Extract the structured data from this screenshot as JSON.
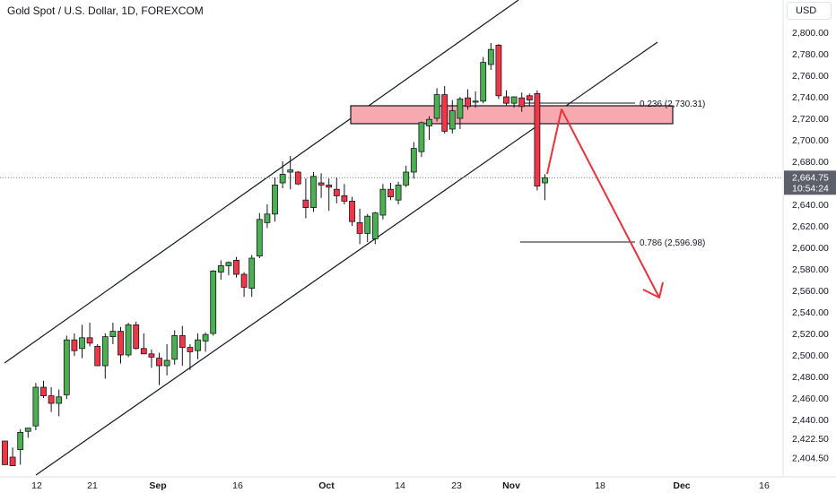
{
  "header": {
    "title": "Gold Spot / U.S. Dollar, 1D, FOREXCOM",
    "currency": "USD"
  },
  "price_label": {
    "price": "2,664.75",
    "countdown": "10:54:24"
  },
  "annotations": {
    "fib_0236": "0.236 (2,730.31)",
    "fib_0786": "0.786 (2,596.98)"
  },
  "colors": {
    "up": "#4caf50",
    "down": "#f23645",
    "arrow": "#e8323c",
    "zone_fill": "#f7a9b0",
    "price_tag": "#5d606b"
  },
  "chart_data": {
    "type": "candlestick",
    "ylim": [
      2394,
      2820
    ],
    "yticks": [
      "2,800.00",
      "2,780.00",
      "2,760.00",
      "2,740.00",
      "2,720.00",
      "2,700.00",
      "2,680.00",
      "2,660.00",
      "2,640.00",
      "2,620.00",
      "2,600.00",
      "2,580.00",
      "2,560.00",
      "2,540.00",
      "2,520.00",
      "2,500.00",
      "2,480.00",
      "2,460.00",
      "2,440.00",
      "2,422.50",
      "2,404.50"
    ],
    "xticks": [
      "12",
      "21",
      "Sep",
      "16",
      "Oct",
      "14",
      "23",
      "Nov",
      "18",
      "Dec",
      "16"
    ],
    "candles": [
      {
        "o": 2420,
        "h": 2420,
        "l": 2398,
        "c": 2398
      },
      {
        "o": 2405,
        "h": 2414,
        "l": 2397,
        "c": 2397
      },
      {
        "o": 2412,
        "h": 2431,
        "l": 2398,
        "c": 2428
      },
      {
        "o": 2429,
        "h": 2432,
        "l": 2423,
        "c": 2432
      },
      {
        "o": 2434,
        "h": 2474,
        "l": 2430,
        "c": 2470
      },
      {
        "o": 2470,
        "h": 2476,
        "l": 2460,
        "c": 2462
      },
      {
        "o": 2462,
        "h": 2470,
        "l": 2447,
        "c": 2455
      },
      {
        "o": 2455,
        "h": 2468,
        "l": 2443,
        "c": 2461
      },
      {
        "o": 2463,
        "h": 2518,
        "l": 2459,
        "c": 2514
      },
      {
        "o": 2514,
        "h": 2520,
        "l": 2499,
        "c": 2504
      },
      {
        "o": 2506,
        "h": 2528,
        "l": 2497,
        "c": 2516
      },
      {
        "o": 2516,
        "h": 2530,
        "l": 2508,
        "c": 2511
      },
      {
        "o": 2508,
        "h": 2510,
        "l": 2490,
        "c": 2490
      },
      {
        "o": 2490,
        "h": 2520,
        "l": 2478,
        "c": 2517
      },
      {
        "o": 2517,
        "h": 2530,
        "l": 2510,
        "c": 2522
      },
      {
        "o": 2522,
        "h": 2526,
        "l": 2492,
        "c": 2500
      },
      {
        "o": 2500,
        "h": 2530,
        "l": 2498,
        "c": 2528
      },
      {
        "o": 2528,
        "h": 2531,
        "l": 2505,
        "c": 2506
      },
      {
        "o": 2506,
        "h": 2520,
        "l": 2501,
        "c": 2501
      },
      {
        "o": 2501,
        "h": 2505,
        "l": 2488,
        "c": 2498
      },
      {
        "o": 2497,
        "h": 2502,
        "l": 2472,
        "c": 2490
      },
      {
        "o": 2490,
        "h": 2510,
        "l": 2481,
        "c": 2495
      },
      {
        "o": 2496,
        "h": 2523,
        "l": 2491,
        "c": 2518
      },
      {
        "o": 2518,
        "h": 2527,
        "l": 2490,
        "c": 2507
      },
      {
        "o": 2507,
        "h": 2510,
        "l": 2486,
        "c": 2503
      },
      {
        "o": 2504,
        "h": 2520,
        "l": 2496,
        "c": 2514
      },
      {
        "o": 2513,
        "h": 2521,
        "l": 2503,
        "c": 2519
      },
      {
        "o": 2520,
        "h": 2579,
        "l": 2518,
        "c": 2578
      },
      {
        "o": 2577,
        "h": 2588,
        "l": 2570,
        "c": 2583
      },
      {
        "o": 2583,
        "h": 2587,
        "l": 2574,
        "c": 2586
      },
      {
        "o": 2588,
        "h": 2591,
        "l": 2572,
        "c": 2575
      },
      {
        "o": 2575,
        "h": 2577,
        "l": 2554,
        "c": 2563
      },
      {
        "o": 2562,
        "h": 2593,
        "l": 2554,
        "c": 2590
      },
      {
        "o": 2592,
        "h": 2632,
        "l": 2590,
        "c": 2626
      },
      {
        "o": 2623,
        "h": 2640,
        "l": 2618,
        "c": 2631
      },
      {
        "o": 2631,
        "h": 2665,
        "l": 2624,
        "c": 2658
      },
      {
        "o": 2660,
        "h": 2680,
        "l": 2655,
        "c": 2668
      },
      {
        "o": 2670,
        "h": 2685,
        "l": 2654,
        "c": 2672
      },
      {
        "o": 2670,
        "h": 2671,
        "l": 2658,
        "c": 2659
      },
      {
        "o": 2644,
        "h": 2664,
        "l": 2627,
        "c": 2637
      },
      {
        "o": 2637,
        "h": 2670,
        "l": 2633,
        "c": 2666
      },
      {
        "o": 2660,
        "h": 2669,
        "l": 2646,
        "c": 2658
      },
      {
        "o": 2658,
        "h": 2664,
        "l": 2634,
        "c": 2656
      },
      {
        "o": 2654,
        "h": 2665,
        "l": 2641,
        "c": 2648
      },
      {
        "o": 2648,
        "h": 2659,
        "l": 2640,
        "c": 2643
      },
      {
        "o": 2643,
        "h": 2647,
        "l": 2620,
        "c": 2624
      },
      {
        "o": 2623,
        "h": 2636,
        "l": 2603,
        "c": 2613
      },
      {
        "o": 2613,
        "h": 2631,
        "l": 2605,
        "c": 2629
      },
      {
        "o": 2608,
        "h": 2633,
        "l": 2603,
        "c": 2632
      },
      {
        "o": 2630,
        "h": 2659,
        "l": 2626,
        "c": 2654
      },
      {
        "o": 2654,
        "h": 2660,
        "l": 2644,
        "c": 2647
      },
      {
        "o": 2644,
        "h": 2661,
        "l": 2640,
        "c": 2658
      },
      {
        "o": 2658,
        "h": 2676,
        "l": 2656,
        "c": 2670
      },
      {
        "o": 2670,
        "h": 2698,
        "l": 2664,
        "c": 2692
      },
      {
        "o": 2689,
        "h": 2717,
        "l": 2684,
        "c": 2716
      },
      {
        "o": 2713,
        "h": 2722,
        "l": 2700,
        "c": 2719
      },
      {
        "o": 2720,
        "h": 2748,
        "l": 2717,
        "c": 2742
      },
      {
        "o": 2742,
        "h": 2750,
        "l": 2706,
        "c": 2708
      },
      {
        "o": 2710,
        "h": 2737,
        "l": 2706,
        "c": 2727
      },
      {
        "o": 2720,
        "h": 2740,
        "l": 2710,
        "c": 2738
      },
      {
        "o": 2739,
        "h": 2747,
        "l": 2728,
        "c": 2731
      },
      {
        "o": 2735,
        "h": 2745,
        "l": 2730,
        "c": 2736
      },
      {
        "o": 2736,
        "h": 2777,
        "l": 2734,
        "c": 2772
      },
      {
        "o": 2770,
        "h": 2790,
        "l": 2765,
        "c": 2784
      },
      {
        "o": 2788,
        "h": 2789,
        "l": 2738,
        "c": 2741
      },
      {
        "o": 2740,
        "h": 2746,
        "l": 2732,
        "c": 2734
      },
      {
        "o": 2734,
        "h": 2740,
        "l": 2730,
        "c": 2740
      },
      {
        "o": 2739,
        "h": 2744,
        "l": 2726,
        "c": 2731
      },
      {
        "o": 2741,
        "h": 2743,
        "l": 2731,
        "c": 2737
      },
      {
        "o": 2743,
        "h": 2746,
        "l": 2653,
        "c": 2657
      },
      {
        "o": 2660,
        "h": 2668,
        "l": 2644,
        "c": 2664.75
      }
    ]
  }
}
